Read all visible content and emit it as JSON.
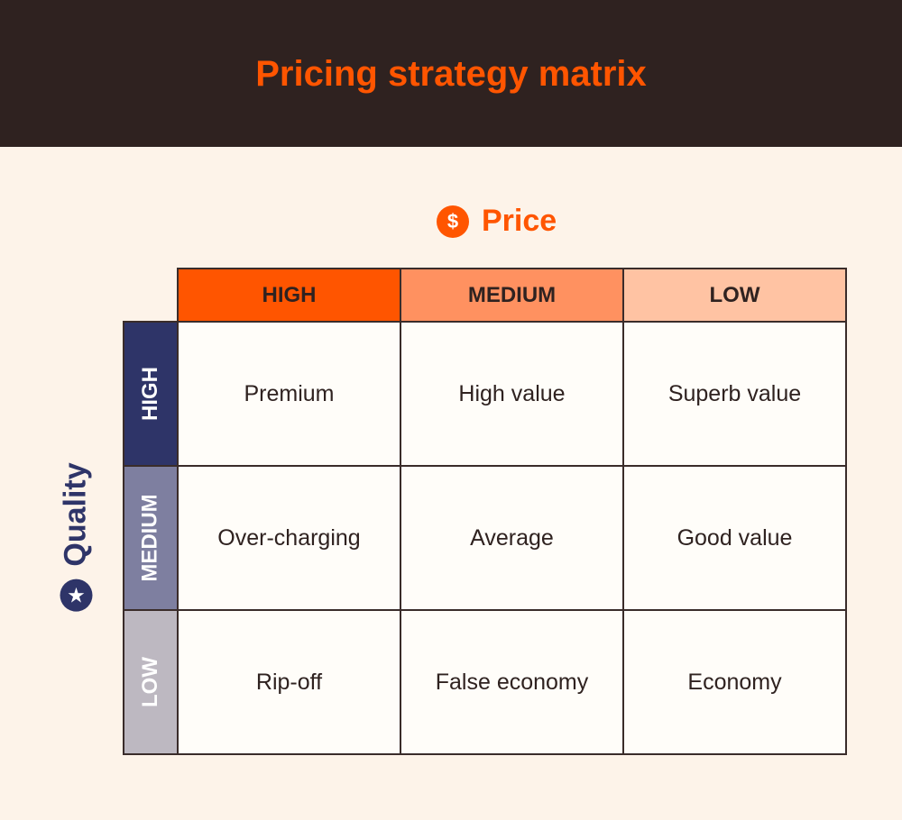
{
  "title": "Pricing strategy matrix",
  "price_axis": {
    "label": "Price",
    "icon": "dollar-icon",
    "columns": [
      "HIGH",
      "MEDIUM",
      "LOW"
    ]
  },
  "quality_axis": {
    "label": "Quality",
    "icon": "star-icon",
    "rows": [
      "HIGH",
      "MEDIUM",
      "LOW"
    ]
  },
  "cells": [
    [
      "Premium",
      "High value",
      "Superb value"
    ],
    [
      "Over-charging",
      "Average",
      "Good value"
    ],
    [
      "Rip-off",
      "False economy",
      "Economy"
    ]
  ],
  "colors": {
    "accent": "#ff5500",
    "header": "#2f2220",
    "quality": "#2e3468",
    "price_cols": [
      "#ff5500",
      "#ff9160",
      "#ffc3a3"
    ],
    "quality_rows": [
      "#2e3468",
      "#7e7fa0",
      "#bdb8c1"
    ]
  }
}
